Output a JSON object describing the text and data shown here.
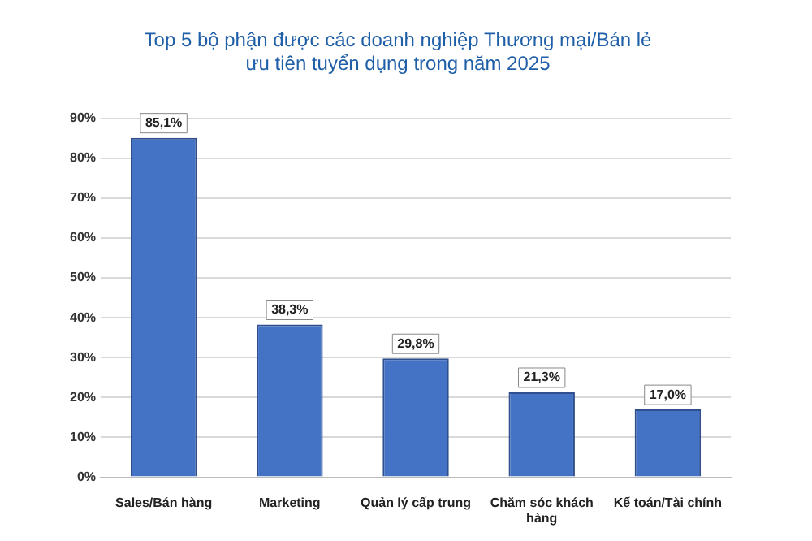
{
  "chart_data": {
    "type": "bar",
    "title": [
      "Top 5 bộ phận được các doanh nghiệp Thương mại/Bán lẻ",
      "ưu tiên tuyển dụng trong năm 2025"
    ],
    "categories": [
      "Sales/Bán hàng",
      "Marketing",
      "Quản lý cấp trung",
      [
        "Chăm sóc khách",
        "hàng"
      ],
      "Kế toán/Tài chính"
    ],
    "values": [
      85.1,
      38.3,
      29.8,
      21.3,
      17.0
    ],
    "value_labels": [
      "85,1%",
      "38,3%",
      "29,8%",
      "21,3%",
      "17,0%"
    ],
    "color": "#4472c4",
    "ylim": [
      0,
      90
    ],
    "yticks": [
      {
        "value": 0,
        "label": "0%"
      },
      {
        "value": 10,
        "label": "10%"
      },
      {
        "value": 20,
        "label": "20%"
      },
      {
        "value": 30,
        "label": "30%"
      },
      {
        "value": 40,
        "label": "40%"
      },
      {
        "value": 50,
        "label": "50%"
      },
      {
        "value": 60,
        "label": "60%"
      },
      {
        "value": 70,
        "label": "70%"
      },
      {
        "value": 80,
        "label": "80%"
      },
      {
        "value": 90,
        "label": "90%"
      }
    ],
    "grid": "y",
    "legend": false
  }
}
